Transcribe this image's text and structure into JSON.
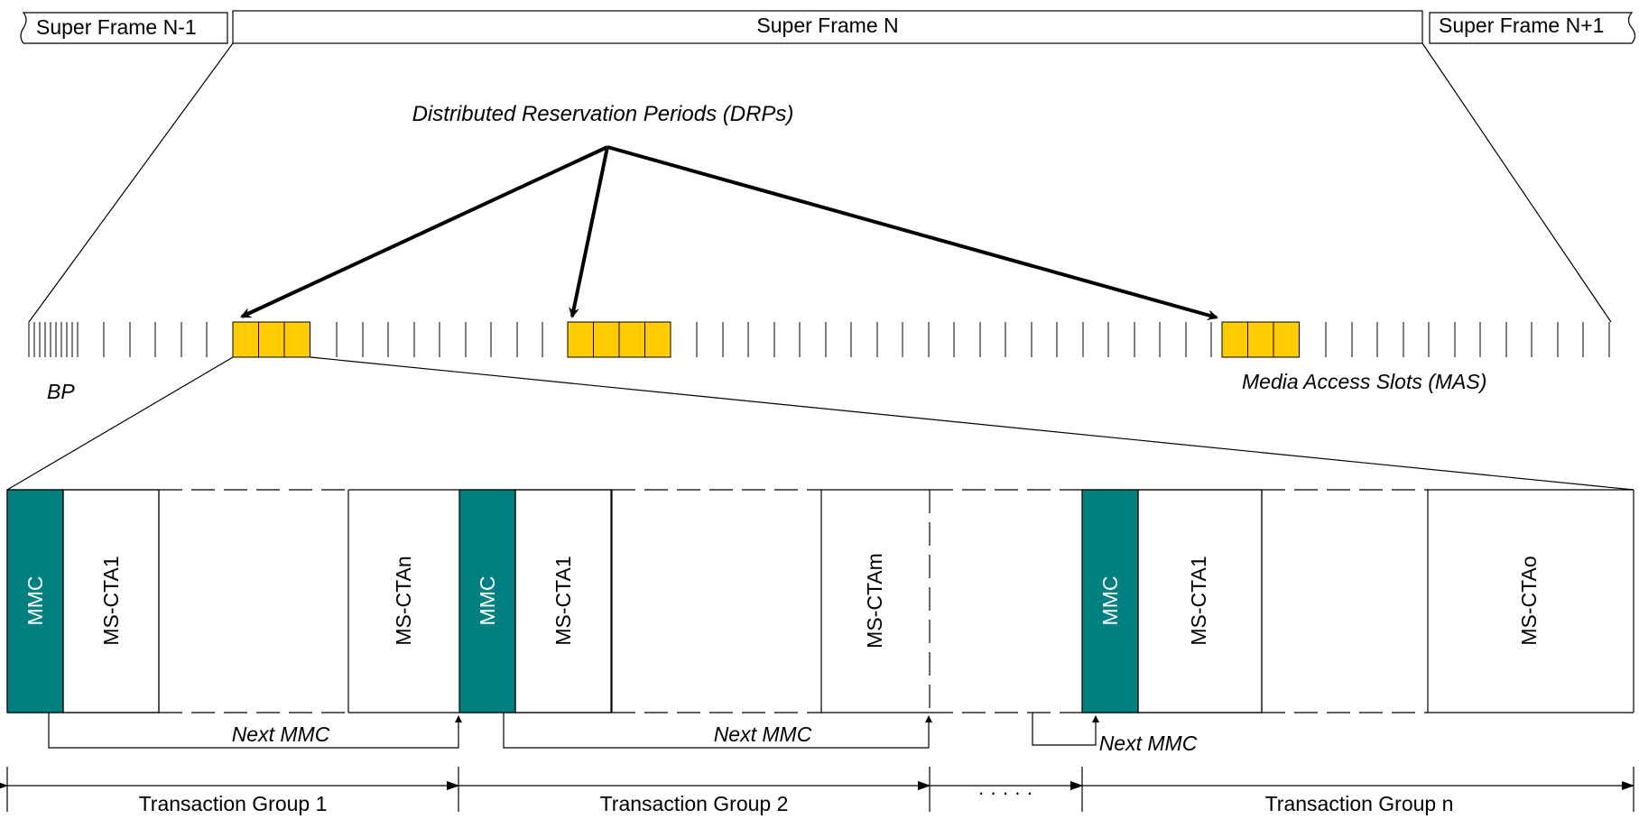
{
  "colors": {
    "drp_slot": "#FFCC00",
    "mmc": "#008080",
    "mmc_text": "#FFFFFF",
    "line": "#000000"
  },
  "superframes": {
    "prev": "Super Frame N-1",
    "current": "Super Frame N",
    "next": "Super Frame N+1"
  },
  "labels": {
    "drps": "Distributed Reservation Periods (DRPs)",
    "bp": "BP",
    "mas": "Media Access Slots (MAS)",
    "ellipsis": "· · · · ·"
  },
  "groups": [
    {
      "mmc": "MMC",
      "first_cta": "MS-CTA1",
      "last_cta": "MS-CTAn",
      "next_mmc": "Next MMC",
      "name": "Transaction Group 1"
    },
    {
      "mmc": "MMC",
      "first_cta": "MS-CTA1",
      "last_cta": "MS-CTAm",
      "next_mmc": "Next MMC",
      "name": "Transaction Group 2"
    },
    {
      "mmc": "MMC",
      "first_cta": "MS-CTA1",
      "last_cta": "MS-CTAo",
      "next_mmc": "Next MMC",
      "name": "Transaction Group n"
    }
  ]
}
